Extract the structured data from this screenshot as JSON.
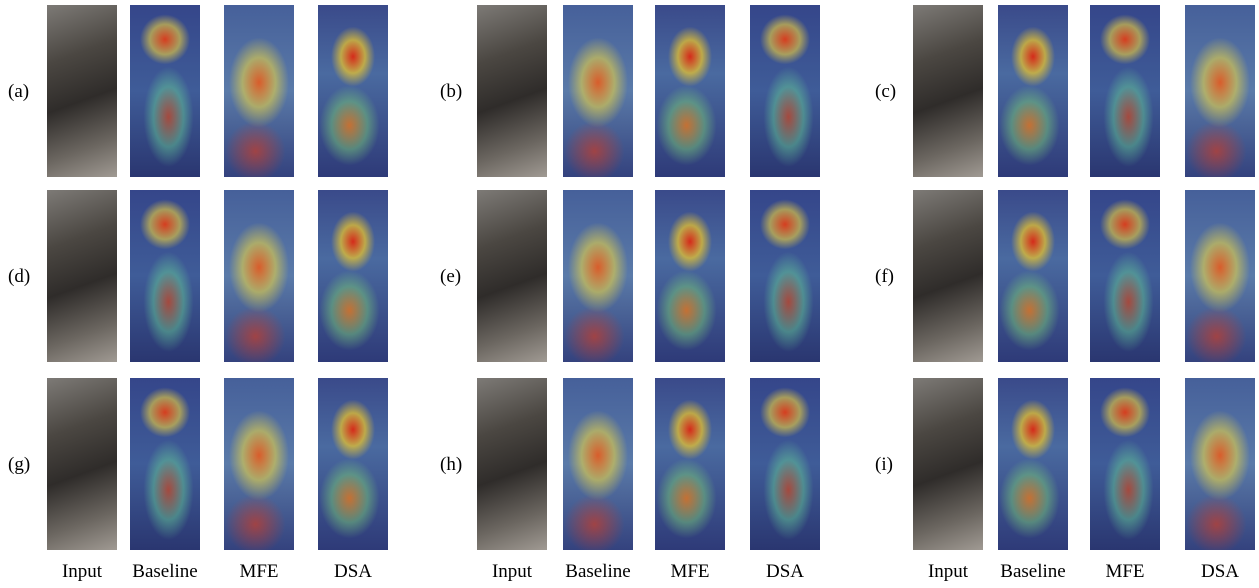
{
  "panels": [
    {
      "label": "(a)"
    },
    {
      "label": "(b)"
    },
    {
      "label": "(c)"
    },
    {
      "label": "(d)"
    },
    {
      "label": "(e)"
    },
    {
      "label": "(f)"
    },
    {
      "label": "(g)"
    },
    {
      "label": "(h)"
    },
    {
      "label": "(i)"
    }
  ],
  "column_groups": [
    [
      "Input",
      "Baseline",
      "MFE",
      "DSA"
    ],
    [
      "Input",
      "Baseline",
      "MFE",
      "DSA"
    ],
    [
      "Input",
      "Baseline",
      "MFE",
      "DSA"
    ]
  ]
}
